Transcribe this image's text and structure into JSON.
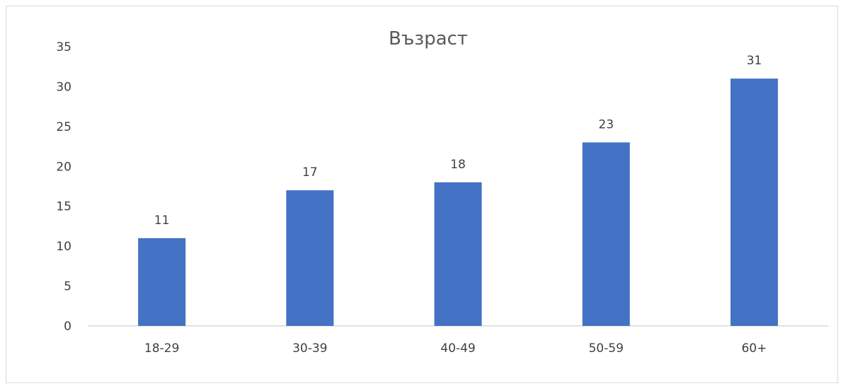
{
  "chart_data": {
    "type": "bar",
    "title": "Възраст",
    "categories": [
      "18-29",
      "30-39",
      "40-49",
      "50-59",
      "60+"
    ],
    "values": [
      11,
      17,
      18,
      23,
      31
    ],
    "data_labels": [
      "11",
      "17",
      "18",
      "23",
      "31"
    ],
    "ylim": [
      0,
      35
    ],
    "yticks": [
      0,
      5,
      10,
      15,
      20,
      25,
      30,
      35
    ],
    "ytick_labels": [
      "0",
      "5",
      "10",
      "15",
      "20",
      "25",
      "30",
      "35"
    ],
    "xlabel": "",
    "ylabel": "",
    "grid": false,
    "legend": "none",
    "bar_color": "#4472C4",
    "axis_color": "#d9d9d9"
  }
}
